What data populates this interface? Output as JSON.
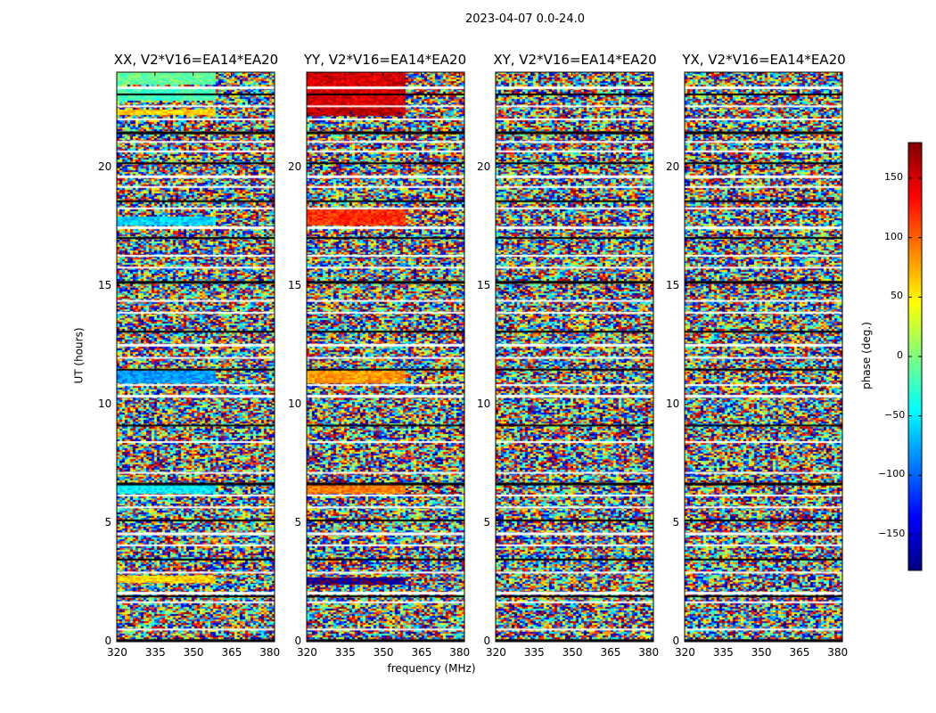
{
  "suptitle": "2023-04-07 0.0-24.0",
  "chart_data": [
    {
      "type": "heatmap",
      "title": "XX, V2*V16=EA14*EA20",
      "xlabel": "frequency (MHz)",
      "ylabel": "UT (hours)",
      "xlim": [
        320,
        382
      ],
      "ylim": [
        0,
        24
      ],
      "xticks": [
        "320",
        "335",
        "350",
        "365",
        "380"
      ],
      "yticks": [
        "0",
        "5",
        "10",
        "15",
        "20"
      ],
      "coherent_bands_hours": [
        [
          2.55,
          2.75
        ],
        [
          6.25,
          6.6
        ],
        [
          10.9,
          11.4
        ],
        [
          17.6,
          17.9
        ],
        [
          22.2,
          22.4
        ],
        [
          22.8,
          23.3
        ],
        [
          23.5,
          24.0
        ]
      ],
      "coherent_phase_deg": [
        60,
        -50,
        -80,
        -60,
        60,
        -20,
        -10
      ]
    },
    {
      "type": "heatmap",
      "title": "YY, V2*V16=EA14*EA20",
      "xlabel": "frequency (MHz)",
      "ylabel": "",
      "xlim": [
        320,
        382
      ],
      "ylim": [
        0,
        24
      ],
      "xticks": [
        "320",
        "335",
        "350",
        "365",
        "380"
      ],
      "yticks": [
        "0",
        "5",
        "10",
        "15",
        "20"
      ],
      "coherent_bands_hours": [
        [
          2.45,
          2.7
        ],
        [
          6.3,
          6.6
        ],
        [
          10.9,
          11.4
        ],
        [
          17.6,
          18.2
        ],
        [
          22.2,
          22.5
        ],
        [
          22.6,
          24.0
        ]
      ],
      "coherent_phase_deg": [
        -170,
        90,
        80,
        120,
        160,
        150
      ]
    },
    {
      "type": "heatmap",
      "title": "XY, V2*V16=EA14*EA20",
      "xlabel": "",
      "ylabel": "",
      "xlim": [
        320,
        382
      ],
      "ylim": [
        0,
        24
      ],
      "xticks": [
        "320",
        "335",
        "350",
        "365",
        "380"
      ],
      "yticks": [
        "0",
        "5",
        "10",
        "15",
        "20"
      ],
      "coherent_bands_hours": [],
      "coherent_phase_deg": []
    },
    {
      "type": "heatmap",
      "title": "YX, V2*V16=EA14*EA20",
      "xlabel": "",
      "ylabel": "",
      "xlim": [
        320,
        382
      ],
      "ylim": [
        0,
        24
      ],
      "xticks": [
        "320",
        "335",
        "350",
        "365",
        "380"
      ],
      "yticks": [
        "0",
        "5",
        "10",
        "15",
        "20"
      ],
      "coherent_bands_hours": [],
      "coherent_phase_deg": []
    }
  ],
  "flagged_hours": [
    0.1,
    0.55,
    1.7,
    1.95,
    2.1,
    2.95,
    3.5,
    4.1,
    4.6,
    5.15,
    5.7,
    6.2,
    6.7,
    7.15,
    8.45,
    9.15,
    10.4,
    10.85,
    11.5,
    12.0,
    12.55,
    13.1,
    13.9,
    14.4,
    15.2,
    15.8,
    16.3,
    17.05,
    17.5,
    18.3,
    18.6,
    19.2,
    19.65,
    20.2,
    20.7,
    21.1,
    21.5,
    22.05,
    22.6,
    23.1,
    23.4
  ],
  "colorbar": {
    "label": "phase (deg.)",
    "range": [
      -180,
      180
    ],
    "ticks": [
      "150",
      "100",
      "50",
      "0",
      "−50",
      "−100",
      "−150"
    ],
    "tick_values": [
      150,
      100,
      50,
      0,
      -50,
      -100,
      -150
    ]
  }
}
